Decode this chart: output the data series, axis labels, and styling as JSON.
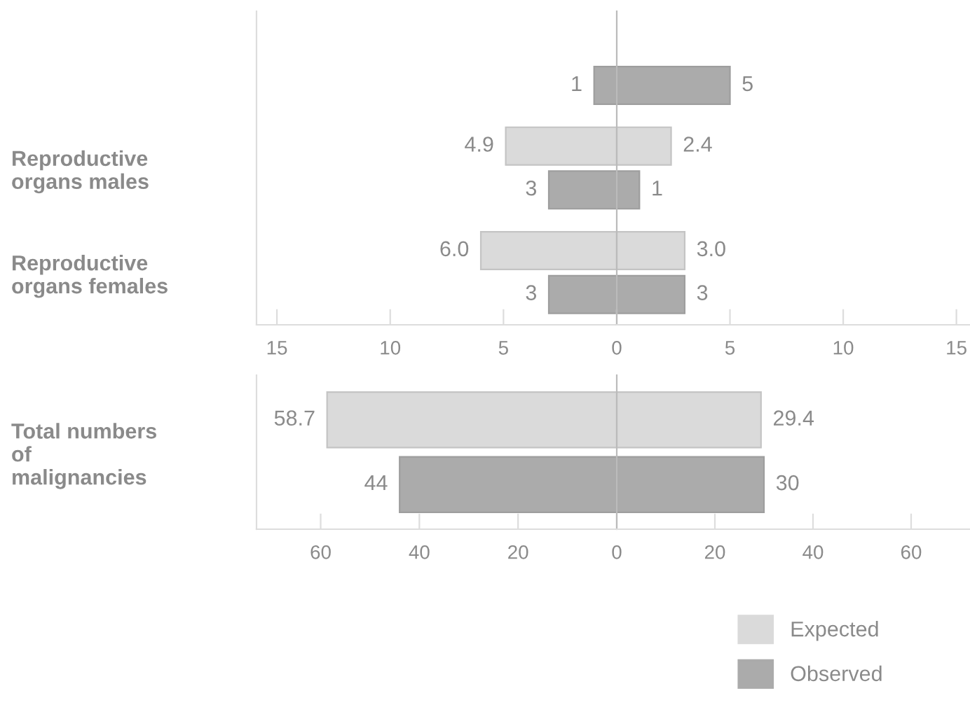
{
  "chart_data": [
    {
      "type": "bar",
      "orientation": "horizontal",
      "categories": [
        null,
        "Reproductive\norgans males",
        "Reproductive\norgans females"
      ],
      "series": [
        {
          "color": "#dadada",
          "values": [
            null,
            4.9,
            6.0
          ],
          "value_labels": [
            null,
            "4.9",
            "6.0"
          ]
        },
        {
          "color": "#ababab",
          "values": [
            1,
            3,
            3
          ],
          "value_labels": [
            "1",
            "3",
            "3"
          ]
        }
      ],
      "xlim": [
        15.9,
        0
      ],
      "xticks": [
        15,
        10,
        5,
        {
          "value": 0,
          "label": null
        }
      ],
      "grid": false,
      "legend": false
    },
    {
      "type": "bar",
      "orientation": "horizontal",
      "categories": [
        null,
        null,
        null
      ],
      "series": [
        {
          "color": "#dadada",
          "values": [
            null,
            2.4,
            3.0
          ],
          "value_labels": [
            null,
            "2.4",
            "3.0"
          ]
        },
        {
          "color": "#ababab",
          "values": [
            5,
            1,
            3
          ],
          "value_labels": [
            "5",
            "1",
            "3"
          ]
        }
      ],
      "xlim": [
        0,
        15.6
      ],
      "xticks": [
        0,
        5,
        10,
        15
      ],
      "tick_labels": "x",
      "grid": false,
      "legend": false
    },
    {
      "type": "bar",
      "orientation": "horizontal",
      "categories": [
        "Total numbers\nof\nmalignancies"
      ],
      "series": [
        {
          "name": "Expected",
          "color": "#dadada",
          "values": [
            58.7
          ],
          "value_labels": [
            "58.7"
          ]
        },
        {
          "name": "Observed",
          "color": "#ababab",
          "values": [
            44
          ],
          "value_labels": [
            "44"
          ]
        }
      ],
      "xlim": [
        73,
        0
      ],
      "xticks": [
        60,
        40,
        20,
        {
          "value": 0,
          "label": null
        }
      ],
      "grid": false,
      "legend": "bottom right"
    },
    {
      "type": "bar",
      "orientation": "horizontal",
      "categories": [
        null
      ],
      "series": [
        {
          "color": "#dadada",
          "values": [
            29.4
          ],
          "value_labels": [
            "29.4"
          ]
        },
        {
          "color": "#ababab",
          "values": [
            30
          ],
          "value_labels": [
            "30"
          ]
        }
      ],
      "xlim": [
        0,
        72
      ],
      "xticks": [
        0,
        20,
        40,
        60
      ],
      "tick_labels": "x",
      "grid": false,
      "legend": false
    }
  ]
}
